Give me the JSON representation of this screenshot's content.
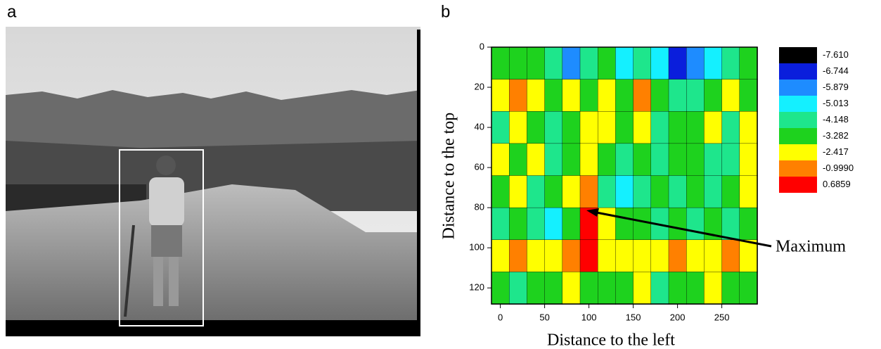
{
  "panel_a": {
    "label": "a"
  },
  "chart_data": {
    "type": "contour",
    "panel_label": "b",
    "xlabel": "Distance to the left",
    "ylabel": "Distance to the top",
    "annotation": "Maximum",
    "xlim": [
      -10,
      290
    ],
    "ylim": [
      0,
      128
    ],
    "y_inverted": true,
    "xticks": [
      0,
      50,
      100,
      150,
      200,
      250
    ],
    "yticks": [
      0,
      20,
      40,
      60,
      80,
      100,
      120
    ],
    "x": [
      0,
      20,
      40,
      60,
      80,
      100,
      120,
      140,
      160,
      180,
      200,
      220,
      240,
      260,
      280
    ],
    "y": [
      8,
      24,
      40,
      56,
      72,
      88,
      104,
      120
    ],
    "z": [
      [
        -3.5,
        -3.5,
        -3.5,
        -4.5,
        -6.0,
        -4.5,
        -3.5,
        -5.3,
        -4.5,
        -5.3,
        -7.0,
        -6.0,
        -5.3,
        -4.5,
        -3.5
      ],
      [
        -2.5,
        -1.5,
        -3.0,
        -3.5,
        -3.0,
        -3.5,
        -2.5,
        -3.5,
        -1.5,
        -3.5,
        -4.5,
        -4.5,
        -3.5,
        -3.0,
        -3.5
      ],
      [
        -4.5,
        -2.5,
        -3.5,
        -4.5,
        -3.5,
        -3.0,
        -2.5,
        -3.5,
        -2.5,
        -4.5,
        -3.5,
        -3.5,
        -2.5,
        -4.5,
        -3.0
      ],
      [
        -2.5,
        -3.5,
        -3.0,
        -4.5,
        -3.5,
        -2.5,
        -3.5,
        -4.5,
        -3.5,
        -4.5,
        -3.5,
        -3.5,
        -4.5,
        -4.5,
        -2.5
      ],
      [
        -3.5,
        -2.5,
        -4.5,
        -3.5,
        -3.0,
        -1.5,
        -4.5,
        -5.3,
        -4.5,
        -3.5,
        -4.5,
        -3.5,
        -4.5,
        -3.5,
        -3.0
      ],
      [
        -4.5,
        -3.5,
        -4.5,
        -5.3,
        -3.5,
        -0.5,
        -2.5,
        -3.5,
        -3.5,
        -4.5,
        -3.5,
        -4.5,
        -3.5,
        -4.5,
        -3.5
      ],
      [
        -2.5,
        -1.5,
        -2.5,
        -2.5,
        -1.5,
        -0.5,
        -2.5,
        -2.5,
        -2.5,
        -2.5,
        -1.5,
        -2.5,
        -2.5,
        -1.5,
        -2.5
      ],
      [
        -3.5,
        -4.5,
        -3.5,
        -3.5,
        -3.0,
        -3.5,
        -3.5,
        -3.5,
        -3.0,
        -4.5,
        -3.5,
        -3.5,
        -3.0,
        -3.5,
        -3.5
      ]
    ],
    "levels": [
      {
        "value": -7.61,
        "label": "-7.610"
      },
      -6.744,
      -5.879,
      -5.013,
      -4.148,
      -3.282,
      -2.417,
      {
        "value": -0.999,
        "label": "-0.9990"
      },
      0.6859
    ],
    "level_colors": [
      "#000000",
      "#0a1edc",
      "#1e8cff",
      "#14f0ff",
      "#1ee68c",
      "#1ed21e",
      "#ffff00",
      "#ff8000",
      "#ff0000"
    ]
  }
}
